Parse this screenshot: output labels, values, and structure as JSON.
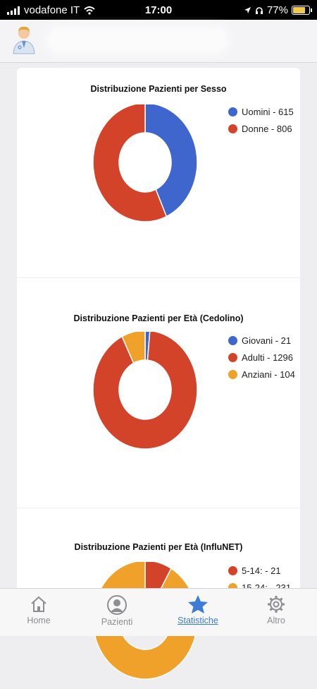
{
  "status_bar": {
    "carrier": "vodafone IT",
    "time": "17:00",
    "battery": "77%"
  },
  "colors": {
    "blue": "#3f66cc",
    "red": "#d2432a",
    "orange": "#f0a12a",
    "accent": "#3d7cd6"
  },
  "charts": [
    {
      "title": "Distribuzione Pazienti per Sesso",
      "legend": [
        "Uomini - 615",
        "Donne - 806"
      ]
    },
    {
      "title": "Distribuzione Pazienti per Età (Cedolino)",
      "legend": [
        "Giovani - 21",
        "Adulti - 1296",
        "Anziani - 104"
      ]
    },
    {
      "title": "Distribuzione Pazienti per Età (InfluNET)",
      "legend": [
        "5-14: - 21",
        "15-24: - 231"
      ]
    }
  ],
  "chart_data": [
    {
      "type": "pie",
      "title": "Distribuzione Pazienti per Sesso",
      "categories": [
        "Uomini",
        "Donne"
      ],
      "values": [
        615,
        806
      ],
      "legend": "right"
    },
    {
      "type": "pie",
      "title": "Distribuzione Pazienti per Età (Cedolino)",
      "categories": [
        "Giovani",
        "Adulti",
        "Anziani"
      ],
      "values": [
        21,
        1296,
        104
      ],
      "legend": "right"
    },
    {
      "type": "pie",
      "title": "Distribuzione Pazienti per Età (InfluNET)",
      "categories": [
        "5-14:",
        "15-24:"
      ],
      "values": [
        21,
        231
      ],
      "legend": "right"
    }
  ],
  "tabs": [
    {
      "label": "Home",
      "icon": "home-icon"
    },
    {
      "label": "Pazienti",
      "icon": "user-icon"
    },
    {
      "label": "Statistiche",
      "icon": "star-icon",
      "active": true
    },
    {
      "label": "Altro",
      "icon": "gear-icon"
    }
  ]
}
